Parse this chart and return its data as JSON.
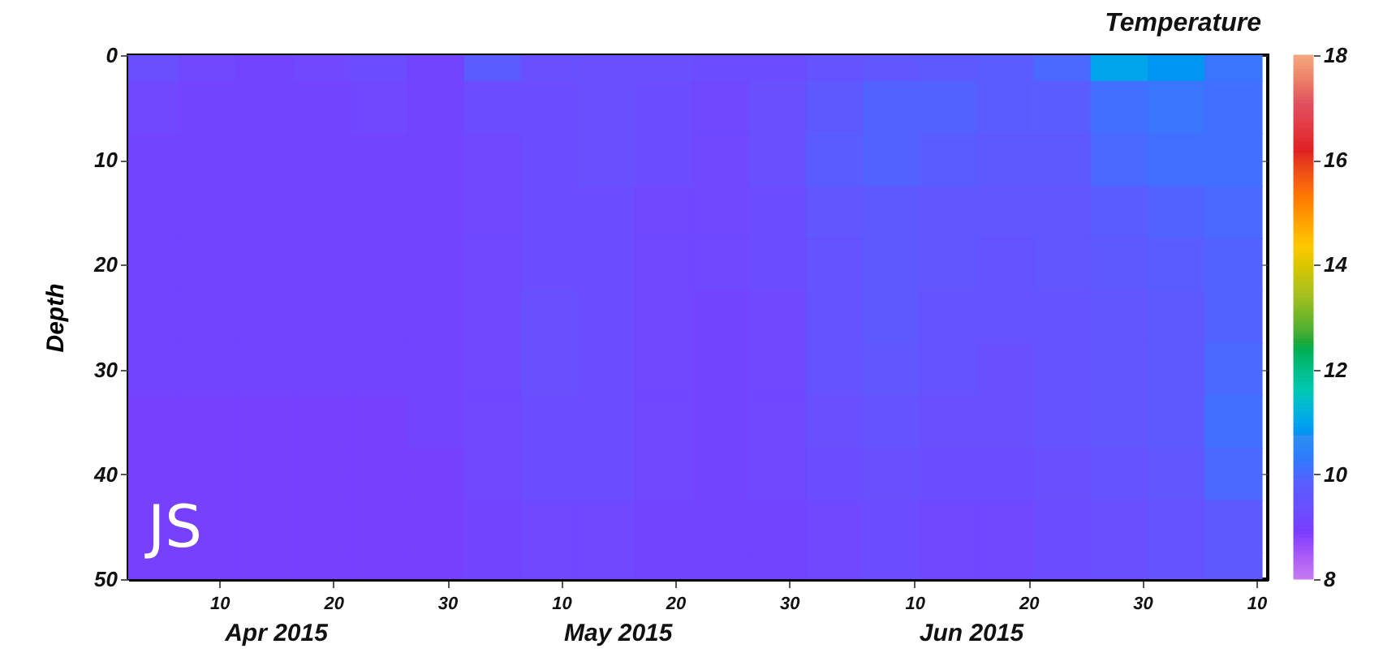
{
  "chart_data": {
    "type": "heatmap",
    "ylabel": "Depth",
    "clabel": "Temperature",
    "annotations": [
      "JS"
    ],
    "x": [
      "2015-04-04",
      "2015-04-09",
      "2015-04-14",
      "2015-04-19",
      "2015-04-24",
      "2015-04-29",
      "2015-05-04",
      "2015-05-09",
      "2015-05-14",
      "2015-05-19",
      "2015-05-24",
      "2015-05-29",
      "2015-06-03",
      "2015-06-08",
      "2015-06-13",
      "2015-06-18",
      "2015-06-23",
      "2015-06-28",
      "2015-07-03",
      "2015-07-08"
    ],
    "y_categories": [
      "0",
      null,
      "10",
      null,
      "20",
      null,
      "30",
      null,
      "40",
      null,
      "50"
    ],
    "cells": [
      [
        9.4,
        9.2,
        9.1,
        9.2,
        9.3,
        9.1,
        9.8,
        9.4,
        9.4,
        9.4,
        9.3,
        9.3,
        9.5,
        9.6,
        9.7,
        9.8,
        10.0,
        11.0,
        10.8,
        10.2
      ],
      [
        9.2,
        9.1,
        9.1,
        9.1,
        9.2,
        9.1,
        9.3,
        9.3,
        9.4,
        9.3,
        9.2,
        9.4,
        9.7,
        9.9,
        9.9,
        9.8,
        9.8,
        10.1,
        10.2,
        10.1
      ],
      [
        9.1,
        9.1,
        9.1,
        9.1,
        9.1,
        9.1,
        9.2,
        9.3,
        9.4,
        9.3,
        9.2,
        9.4,
        9.8,
        9.9,
        9.8,
        9.7,
        9.7,
        10.0,
        10.1,
        10.1
      ],
      [
        9.1,
        9.1,
        9.1,
        9.1,
        9.1,
        9.1,
        9.2,
        9.3,
        9.3,
        9.2,
        9.2,
        9.3,
        9.6,
        9.7,
        9.6,
        9.6,
        9.6,
        9.8,
        9.9,
        10.0
      ],
      [
        9.1,
        9.1,
        9.1,
        9.1,
        9.1,
        9.1,
        9.2,
        9.3,
        9.3,
        9.2,
        9.2,
        9.3,
        9.5,
        9.7,
        9.6,
        9.5,
        9.6,
        9.7,
        9.8,
        9.9
      ],
      [
        9.1,
        9.1,
        9.1,
        9.1,
        9.1,
        9.1,
        9.2,
        9.4,
        9.3,
        9.2,
        9.1,
        9.2,
        9.5,
        9.7,
        9.5,
        9.5,
        9.5,
        9.6,
        9.7,
        9.9
      ],
      [
        9.1,
        9.1,
        9.1,
        9.1,
        9.1,
        9.1,
        9.2,
        9.4,
        9.3,
        9.2,
        9.1,
        9.2,
        9.5,
        9.6,
        9.5,
        9.4,
        9.5,
        9.6,
        9.7,
        10.0
      ],
      [
        9.0,
        9.0,
        9.0,
        9.0,
        9.0,
        9.1,
        9.2,
        9.3,
        9.3,
        9.2,
        9.1,
        9.2,
        9.4,
        9.5,
        9.4,
        9.4,
        9.5,
        9.6,
        9.7,
        10.1
      ],
      [
        9.0,
        9.0,
        9.0,
        9.0,
        9.0,
        9.0,
        9.2,
        9.3,
        9.3,
        9.2,
        9.1,
        9.2,
        9.3,
        9.4,
        9.3,
        9.3,
        9.4,
        9.5,
        9.6,
        10.0
      ],
      [
        9.0,
        9.0,
        9.0,
        9.0,
        9.0,
        9.0,
        9.1,
        9.2,
        9.2,
        9.1,
        9.1,
        9.1,
        9.2,
        9.3,
        9.2,
        9.2,
        9.3,
        9.4,
        9.5,
        9.7
      ],
      [
        9.0,
        9.0,
        9.0,
        9.0,
        9.0,
        9.0,
        9.1,
        9.2,
        9.2,
        9.1,
        9.1,
        9.1,
        9.2,
        9.3,
        9.2,
        9.2,
        9.3,
        9.4,
        9.5,
        9.7
      ]
    ],
    "xlim": [
      "2015-04-02",
      "2015-07-11"
    ],
    "xticks": [
      {
        "value": "2015-04-10",
        "label": "10"
      },
      {
        "value": "2015-04-20",
        "label": "20"
      },
      {
        "value": "2015-04-30",
        "label": "30"
      },
      {
        "value": "2015-05-10",
        "label": "10"
      },
      {
        "value": "2015-05-20",
        "label": "20"
      },
      {
        "value": "2015-05-30",
        "label": "30"
      },
      {
        "value": "2015-06-10",
        "label": "10"
      },
      {
        "value": "2015-06-20",
        "label": "20"
      },
      {
        "value": "2015-06-30",
        "label": "30"
      },
      {
        "value": "2015-07-10",
        "label": "10"
      }
    ],
    "x2lim": [
      "2015-04-02",
      "2015-07-11"
    ],
    "x2ticks": [
      {
        "value": "2015-04-15",
        "label": "Apr 2015"
      },
      {
        "value": "2015-05-15",
        "label": "May 2015"
      },
      {
        "value": "2015-06-15",
        "label": "Jun 2015"
      }
    ],
    "clim": [
      8,
      18
    ],
    "cticks": [
      8,
      10,
      12,
      14,
      16,
      18
    ],
    "grid": true
  }
}
